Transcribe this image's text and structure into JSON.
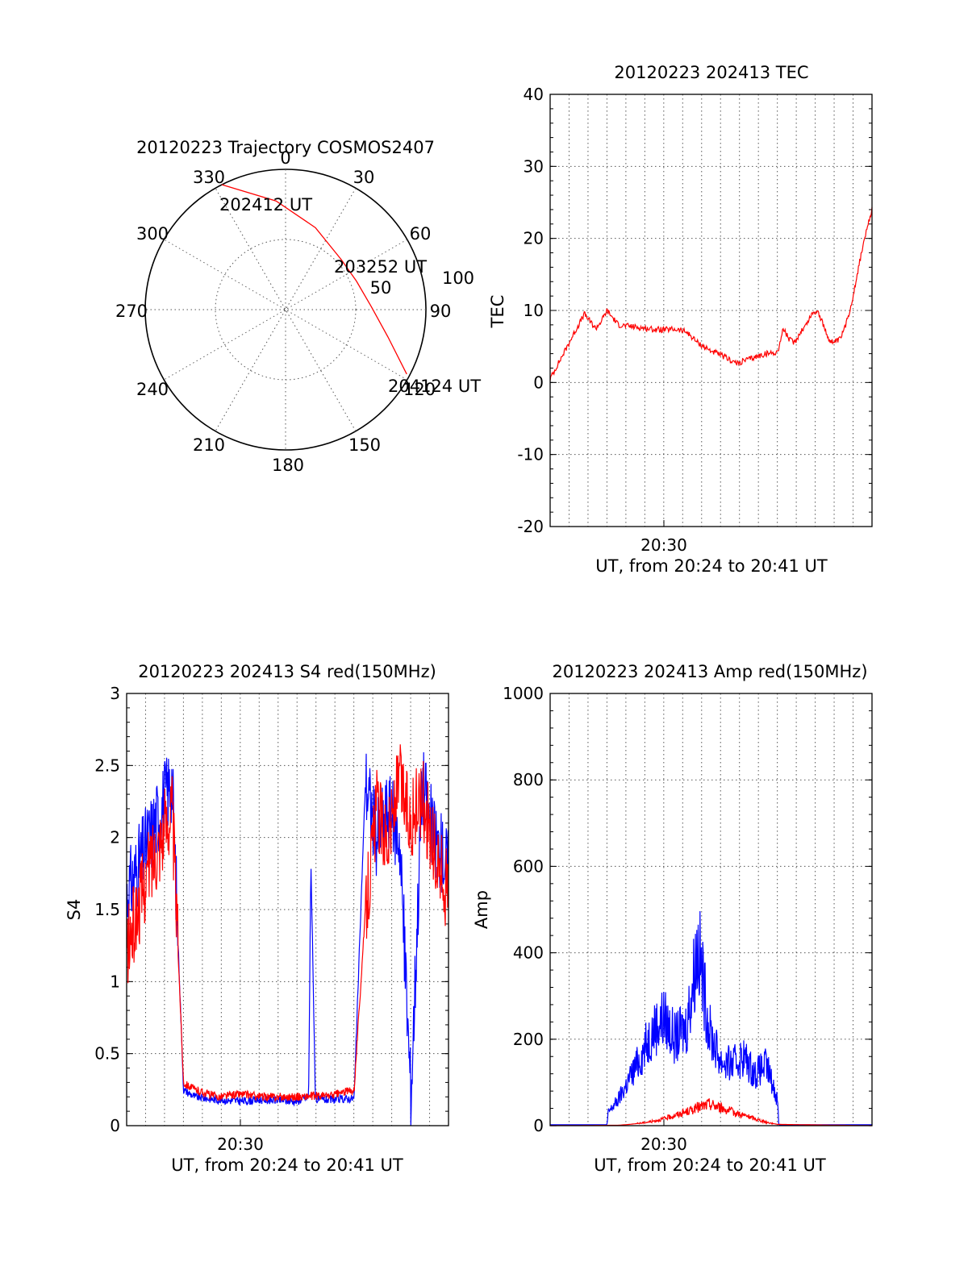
{
  "chart_data": [
    {
      "type": "polar",
      "title": "20120223 Trajectory COSMOS2407",
      "angle_labels": [
        "0",
        "30",
        "60",
        "90",
        "120",
        "150",
        "180",
        "210",
        "240",
        "270",
        "300",
        "330"
      ],
      "radial_labels": [
        "50",
        "100"
      ],
      "start_label": "202412 UT",
      "mid_label": "203252 UT",
      "end_label": "204124 UT",
      "trajectory": [
        {
          "az": 333,
          "el": 0
        },
        {
          "az": 355,
          "el": 20
        },
        {
          "az": 20,
          "el": 34
        },
        {
          "az": 48,
          "el": 42
        },
        {
          "az": 68,
          "el": 41
        },
        {
          "az": 88,
          "el": 35
        },
        {
          "az": 105,
          "el": 22
        },
        {
          "az": 118,
          "el": 2
        }
      ],
      "colors": {
        "trajectory": "#ff0000"
      }
    },
    {
      "type": "line",
      "title": "20120223 202413 TEC",
      "xlabel": "UT, from 20:24 to 20:41 UT",
      "ylabel": "TEC",
      "x_tick_labels": [
        "20:30"
      ],
      "y_tick_labels": [
        "-20",
        "-10",
        "0",
        "10",
        "20",
        "30",
        "40"
      ],
      "xlim": [
        20.4,
        20.683
      ],
      "ylim": [
        -20,
        40
      ],
      "grid": true,
      "series": [
        {
          "color": "#ff0000",
          "x": [
            20.4,
            20.405,
            20.41,
            20.415,
            20.42,
            20.425,
            20.43,
            20.435,
            20.44,
            20.445,
            20.45,
            20.46,
            20.47,
            20.48,
            20.49,
            20.5,
            20.51,
            20.52,
            20.53,
            20.54,
            20.55,
            20.56,
            20.565,
            20.57,
            20.58,
            20.59,
            20.6,
            20.605,
            20.61,
            20.615,
            20.62,
            20.625,
            20.63,
            20.635,
            20.64,
            20.645,
            20.65,
            20.655,
            20.66,
            20.665,
            20.67,
            20.675,
            20.683
          ],
          "values": [
            0.5,
            2,
            3.5,
            5,
            6.5,
            8,
            9.5,
            8.5,
            7.5,
            8.5,
            10,
            8,
            7.8,
            7.6,
            7.4,
            7.3,
            7.4,
            7.0,
            5.5,
            4.5,
            3.8,
            3.0,
            2.6,
            3.0,
            3.5,
            4.0,
            4.2,
            7.5,
            6.0,
            5.5,
            7.0,
            8.0,
            9.5,
            10.0,
            8.0,
            6.0,
            5.5,
            6.0,
            8.0,
            11,
            15,
            19,
            24
          ]
        }
      ]
    },
    {
      "type": "line",
      "title": "20120223 202413 S4 red(150MHz)",
      "xlabel": "UT, from 20:24 to 20:41 UT",
      "ylabel": "S4",
      "x_tick_labels": [
        "20:30"
      ],
      "y_tick_labels": [
        "0",
        "0.5",
        "1",
        "1.5",
        "2",
        "2.5",
        "3"
      ],
      "xlim": [
        20.4,
        20.683
      ],
      "ylim": [
        0,
        3
      ],
      "grid": true,
      "series": [
        {
          "color": "#0000ff",
          "x": [
            20.4,
            20.42,
            20.44,
            20.45,
            20.46,
            20.48,
            20.5,
            20.52,
            20.55,
            20.56,
            20.562,
            20.566,
            20.58,
            20.6,
            20.61,
            20.62,
            20.63,
            20.64,
            20.65,
            20.66,
            20.67,
            20.683
          ],
          "values": [
            1.6,
            2.0,
            2.4,
            0.25,
            0.2,
            0.18,
            0.17,
            0.18,
            0.17,
            0.2,
            1.85,
            0.18,
            0.18,
            0.19,
            2.4,
            2.0,
            2.2,
            2.0,
            0.2,
            2.4,
            2.0,
            1.8
          ]
        },
        {
          "color": "#ff0000",
          "x": [
            20.4,
            20.42,
            20.44,
            20.45,
            20.46,
            20.48,
            20.5,
            20.52,
            20.55,
            20.58,
            20.6,
            20.61,
            20.62,
            20.63,
            20.64,
            20.65,
            20.66,
            20.67,
            20.683
          ],
          "values": [
            1.2,
            1.8,
            2.2,
            0.3,
            0.25,
            0.2,
            0.22,
            0.2,
            0.2,
            0.21,
            0.25,
            1.5,
            2.2,
            2.0,
            2.4,
            2.1,
            2.3,
            1.9,
            1.6
          ]
        }
      ]
    },
    {
      "type": "line",
      "title": "20120223 202413 Amp red(150MHz)",
      "xlabel": "UT, from 20:24 to 20:41 UT",
      "ylabel": "Amp",
      "x_tick_labels": [
        "20:30"
      ],
      "y_tick_labels": [
        "0",
        "200",
        "400",
        "600",
        "800",
        "1000"
      ],
      "xlim": [
        20.4,
        20.683
      ],
      "ylim": [
        0,
        1000
      ],
      "grid": true,
      "series": [
        {
          "color": "#0000ff",
          "x": [
            20.4,
            20.45,
            20.451,
            20.46,
            20.47,
            20.48,
            20.49,
            20.5,
            20.51,
            20.52,
            20.53,
            20.54,
            20.55,
            20.56,
            20.57,
            20.58,
            20.59,
            20.6,
            20.601,
            20.683
          ],
          "values": [
            2,
            2,
            30,
            60,
            110,
            160,
            220,
            250,
            200,
            230,
            420,
            220,
            150,
            140,
            160,
            120,
            140,
            60,
            2,
            2
          ]
        },
        {
          "color": "#ff0000",
          "x": [
            20.4,
            20.46,
            20.47,
            20.48,
            20.49,
            20.5,
            20.51,
            20.52,
            20.53,
            20.54,
            20.55,
            20.56,
            20.57,
            20.58,
            20.59,
            20.6,
            20.683
          ],
          "values": [
            0,
            1,
            3,
            6,
            10,
            16,
            24,
            32,
            42,
            50,
            42,
            32,
            24,
            16,
            8,
            3,
            0
          ]
        }
      ]
    }
  ]
}
